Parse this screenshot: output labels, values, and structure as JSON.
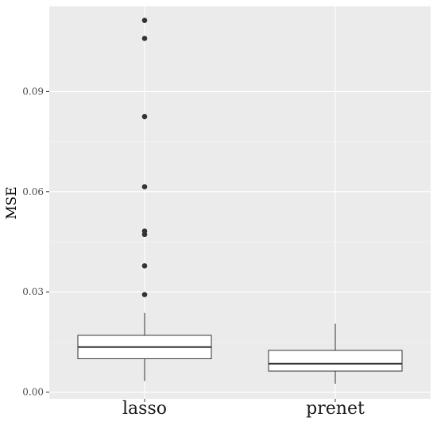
{
  "chart_data": {
    "type": "box",
    "title": "",
    "xlabel": "",
    "ylabel": "MSE",
    "ylim": [
      -0.002,
      0.1155
    ],
    "yticks": [
      0.0,
      0.03,
      0.06,
      0.09
    ],
    "ytick_labels": [
      "0.00",
      "0.03",
      "0.06",
      "0.09"
    ],
    "grid": true,
    "categories": [
      "lasso",
      "prenet"
    ],
    "boxes": [
      {
        "category": "lasso",
        "whisker_low": 0.0033,
        "q1": 0.01,
        "median": 0.0135,
        "q3": 0.017,
        "whisker_high": 0.0237,
        "outliers": [
          0.0292,
          0.0378,
          0.0472,
          0.0482,
          0.0615,
          0.0825,
          0.1059,
          0.1113
        ]
      },
      {
        "category": "prenet",
        "whisker_low": 0.0025,
        "q1": 0.0063,
        "median": 0.0085,
        "q3": 0.0125,
        "whisker_high": 0.0205,
        "outliers": []
      }
    ],
    "colors": {
      "panel": "#ebebeb",
      "grid_major": "#ffffff",
      "grid_minor": "#f5f5f5",
      "box_fill": "#ffffff",
      "box_line": "#333333",
      "outlier": "#333333"
    }
  }
}
